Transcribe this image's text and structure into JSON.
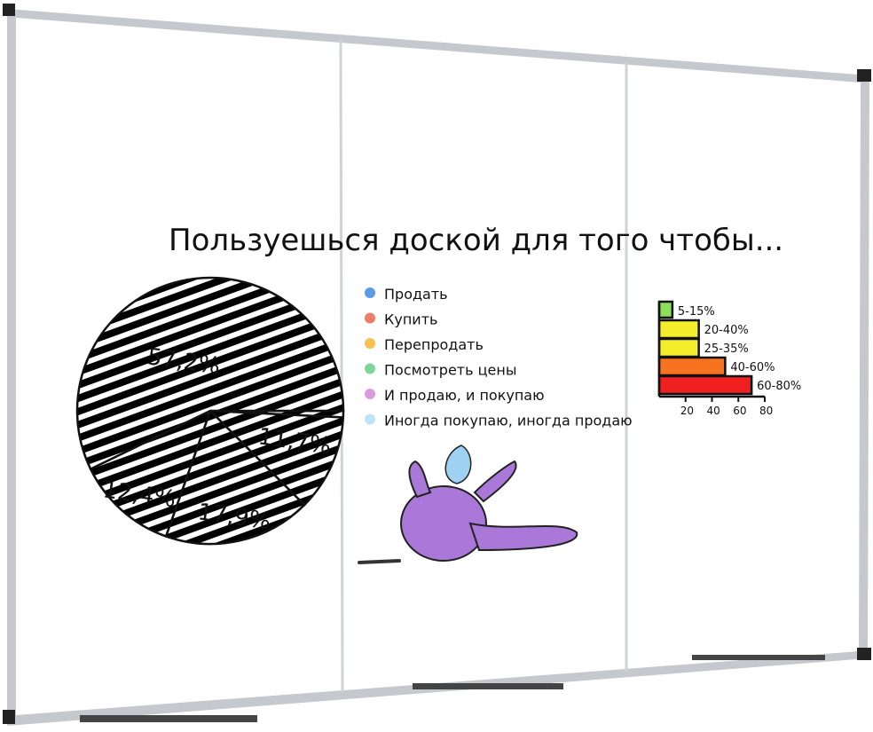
{
  "title": "Пользуешься доской для того чтобы...",
  "colors": {
    "frame": "#b9bcc0",
    "corner": "#222222",
    "board": "#ffffff",
    "ink": "#111111"
  },
  "chart_data": [
    {
      "type": "pie",
      "title": "",
      "slices": [
        {
          "name": "Иногда покупаю, иногда продаю",
          "value": 0.8,
          "label": "",
          "color": "#bfe3f7"
        },
        {
          "name": "Продать",
          "value": 11.7,
          "label": "11,7%",
          "color": "#5b9ae8"
        },
        {
          "name": "Купить",
          "value": 17.9,
          "label": "17,9%",
          "color": "#f07b68"
        },
        {
          "name": "Посмотреть цены",
          "value": 12.4,
          "label": "12,4%",
          "color": "#7fd49a"
        },
        {
          "name": "И продаю, и покупаю",
          "value": 57.2,
          "label": "57,2%",
          "color": "#d99ae0"
        }
      ],
      "legend": {
        "placement": "right",
        "items": [
          {
            "label": "Продать",
            "color": "#5b9ae8"
          },
          {
            "label": "Купить",
            "color": "#f07b68"
          },
          {
            "label": "Перепродать",
            "color": "#f8c050"
          },
          {
            "label": "Посмотреть цены",
            "color": "#7fd49a"
          },
          {
            "label": "И продаю, и покупаю",
            "color": "#d99ae0"
          },
          {
            "label": "Иногда покупаю, иногда продаю",
            "color": "#bfe3f7"
          }
        ]
      }
    },
    {
      "type": "bar",
      "orientation": "horizontal",
      "categories": [
        "5-15%",
        "20-40%",
        "25-35%",
        "40-60%",
        "60-80%"
      ],
      "values": [
        10,
        30,
        30,
        50,
        70
      ],
      "colors": [
        "#8ede5a",
        "#f5ee2a",
        "#f5ee2a",
        "#f8731f",
        "#f02020"
      ],
      "xticks": [
        "20",
        "40",
        "60",
        "80"
      ],
      "xlim": [
        0,
        80
      ],
      "xlabel": "",
      "ylabel": ""
    }
  ]
}
